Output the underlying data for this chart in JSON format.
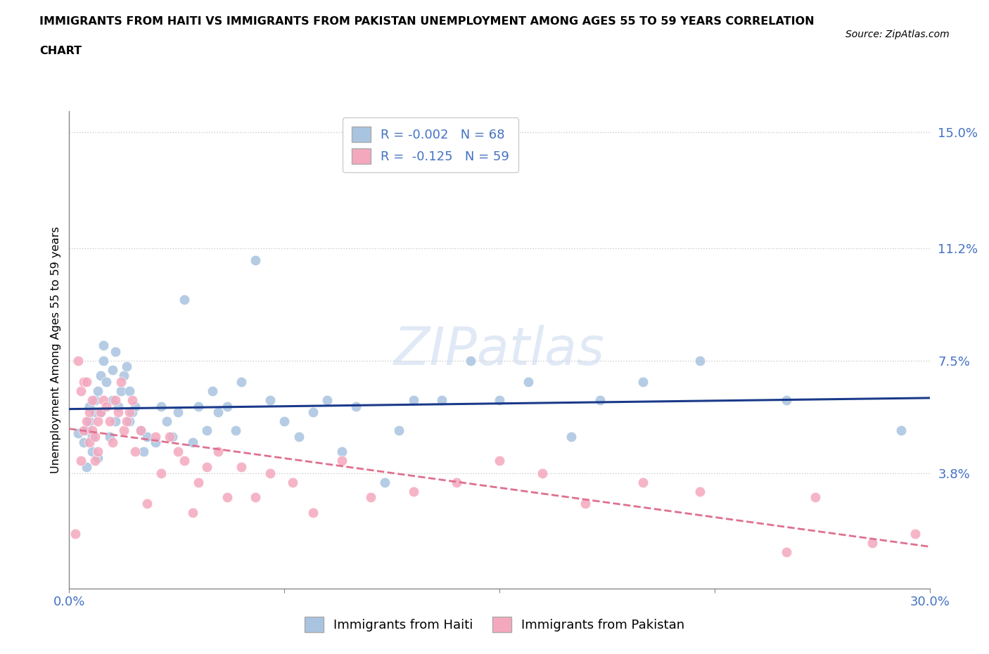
{
  "title_line1": "IMMIGRANTS FROM HAITI VS IMMIGRANTS FROM PAKISTAN UNEMPLOYMENT AMONG AGES 55 TO 59 YEARS CORRELATION",
  "title_line2": "CHART",
  "source": "Source: ZipAtlas.com",
  "ylabel": "Unemployment Among Ages 55 to 59 years",
  "xlim": [
    0.0,
    0.3
  ],
  "ylim": [
    0.0,
    0.157
  ],
  "xtick_positions": [
    0.0,
    0.075,
    0.15,
    0.225,
    0.3
  ],
  "xticklabels_show": [
    "0.0%",
    "",
    "",
    "",
    "30.0%"
  ],
  "ytick_positions": [
    0.038,
    0.075,
    0.112,
    0.15
  ],
  "ytick_labels": [
    "3.8%",
    "7.5%",
    "11.2%",
    "15.0%"
  ],
  "haiti_R": -0.002,
  "haiti_N": 68,
  "pakistan_R": -0.125,
  "pakistan_N": 59,
  "haiti_color": "#a8c4e0",
  "pakistan_color": "#f4a8be",
  "haiti_line_color": "#1a3a8a",
  "pakistan_line_color": "#e07090",
  "watermark": "ZIPatlas",
  "legend_haiti": "Immigrants from Haiti",
  "legend_pakistan": "Immigrants from Pakistan",
  "haiti_x": [
    0.003,
    0.005,
    0.006,
    0.006,
    0.007,
    0.007,
    0.008,
    0.008,
    0.009,
    0.009,
    0.01,
    0.01,
    0.011,
    0.011,
    0.012,
    0.012,
    0.013,
    0.014,
    0.015,
    0.015,
    0.016,
    0.016,
    0.017,
    0.018,
    0.019,
    0.02,
    0.021,
    0.021,
    0.022,
    0.023,
    0.025,
    0.026,
    0.027,
    0.03,
    0.032,
    0.034,
    0.036,
    0.038,
    0.04,
    0.043,
    0.045,
    0.048,
    0.05,
    0.052,
    0.055,
    0.058,
    0.06,
    0.065,
    0.07,
    0.075,
    0.08,
    0.085,
    0.09,
    0.095,
    0.1,
    0.11,
    0.115,
    0.12,
    0.13,
    0.14,
    0.15,
    0.16,
    0.175,
    0.185,
    0.2,
    0.22,
    0.25,
    0.29
  ],
  "haiti_y": [
    0.051,
    0.048,
    0.052,
    0.04,
    0.055,
    0.06,
    0.05,
    0.045,
    0.062,
    0.058,
    0.065,
    0.043,
    0.058,
    0.07,
    0.075,
    0.08,
    0.068,
    0.05,
    0.072,
    0.062,
    0.078,
    0.055,
    0.06,
    0.065,
    0.07,
    0.073,
    0.065,
    0.055,
    0.058,
    0.06,
    0.052,
    0.045,
    0.05,
    0.048,
    0.06,
    0.055,
    0.05,
    0.058,
    0.095,
    0.048,
    0.06,
    0.052,
    0.065,
    0.058,
    0.06,
    0.052,
    0.068,
    0.108,
    0.062,
    0.055,
    0.05,
    0.058,
    0.062,
    0.045,
    0.06,
    0.035,
    0.052,
    0.062,
    0.062,
    0.075,
    0.062,
    0.068,
    0.05,
    0.062,
    0.068,
    0.075,
    0.062,
    0.052
  ],
  "pakistan_x": [
    0.002,
    0.003,
    0.004,
    0.004,
    0.005,
    0.005,
    0.006,
    0.006,
    0.007,
    0.007,
    0.008,
    0.008,
    0.009,
    0.009,
    0.01,
    0.01,
    0.011,
    0.012,
    0.013,
    0.014,
    0.015,
    0.016,
    0.017,
    0.018,
    0.019,
    0.02,
    0.021,
    0.022,
    0.023,
    0.025,
    0.027,
    0.03,
    0.032,
    0.035,
    0.038,
    0.04,
    0.043,
    0.045,
    0.048,
    0.052,
    0.055,
    0.06,
    0.065,
    0.07,
    0.078,
    0.085,
    0.095,
    0.105,
    0.12,
    0.135,
    0.15,
    0.165,
    0.18,
    0.2,
    0.22,
    0.25,
    0.26,
    0.28,
    0.295
  ],
  "pakistan_y": [
    0.018,
    0.075,
    0.065,
    0.042,
    0.068,
    0.052,
    0.068,
    0.055,
    0.058,
    0.048,
    0.062,
    0.052,
    0.05,
    0.042,
    0.055,
    0.045,
    0.058,
    0.062,
    0.06,
    0.055,
    0.048,
    0.062,
    0.058,
    0.068,
    0.052,
    0.055,
    0.058,
    0.062,
    0.045,
    0.052,
    0.028,
    0.05,
    0.038,
    0.05,
    0.045,
    0.042,
    0.025,
    0.035,
    0.04,
    0.045,
    0.03,
    0.04,
    0.03,
    0.038,
    0.035,
    0.025,
    0.042,
    0.03,
    0.032,
    0.035,
    0.042,
    0.038,
    0.028,
    0.035,
    0.032,
    0.012,
    0.03,
    0.015,
    0.018
  ]
}
